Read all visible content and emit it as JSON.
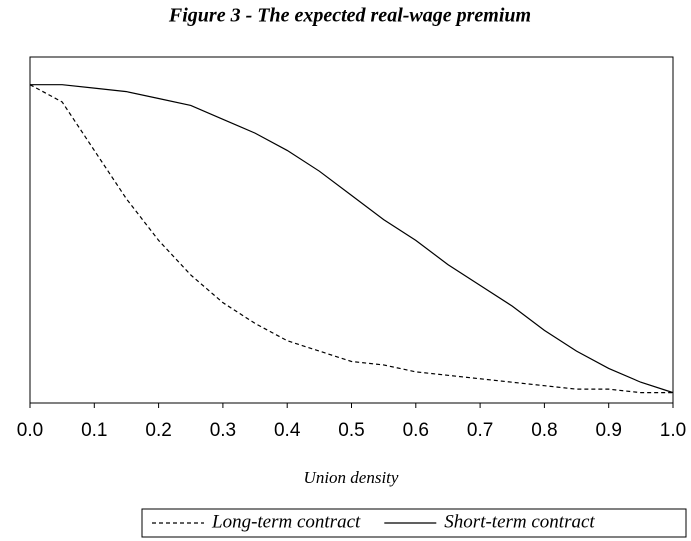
{
  "chart_data": {
    "type": "line",
    "title": "Figure 3 - The expected real-wage premium",
    "x_label": "Union density",
    "x": [
      0.0,
      0.05,
      0.1,
      0.15,
      0.2,
      0.25,
      0.3,
      0.35,
      0.4,
      0.45,
      0.5,
      0.55,
      0.6,
      0.65,
      0.7,
      0.75,
      0.8,
      0.85,
      0.9,
      0.95,
      1.0
    ],
    "series": [
      {
        "name": "Long-term contract",
        "color": "#000000",
        "style": "dashed",
        "values": [
          0.92,
          0.87,
          0.73,
          0.59,
          0.47,
          0.37,
          0.29,
          0.23,
          0.18,
          0.15,
          0.12,
          0.11,
          0.09,
          0.08,
          0.07,
          0.06,
          0.05,
          0.04,
          0.04,
          0.03,
          0.03
        ]
      },
      {
        "name": "Short-term contract",
        "color": "#000000",
        "style": "solid",
        "values": [
          0.92,
          0.92,
          0.91,
          0.9,
          0.88,
          0.86,
          0.82,
          0.78,
          0.73,
          0.67,
          0.6,
          0.53,
          0.47,
          0.4,
          0.34,
          0.28,
          0.21,
          0.15,
          0.1,
          0.06,
          0.03
        ]
      }
    ],
    "xlim": [
      0,
      1
    ],
    "ylim": [
      0,
      1
    ],
    "xticks": [
      {
        "value": 0,
        "label": "0.0"
      },
      {
        "value": 0.1,
        "label": "0.1"
      },
      {
        "value": 0.2,
        "label": "0.2"
      },
      {
        "value": 0.3,
        "label": "0.3"
      },
      {
        "value": 0.4,
        "label": "0.4"
      },
      {
        "value": 0.5,
        "label": "0.5"
      },
      {
        "value": 0.6,
        "label": "0.6"
      },
      {
        "value": 0.7,
        "label": "0.7"
      },
      {
        "value": 0.8,
        "label": "0.8"
      },
      {
        "value": 0.9,
        "label": "0.9"
      },
      {
        "value": 1,
        "label": "1.0"
      }
    ],
    "legend": "bottom"
  }
}
